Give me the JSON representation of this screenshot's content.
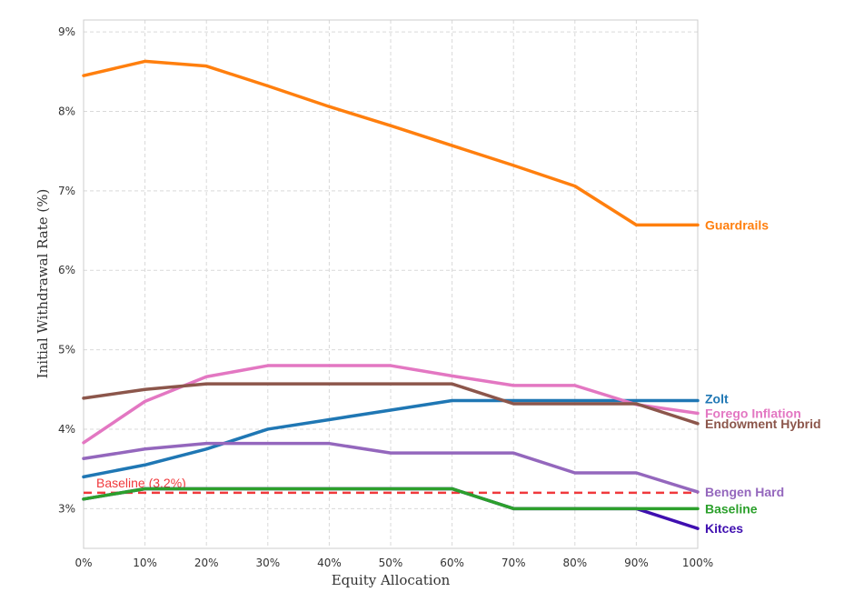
{
  "chart_data": {
    "type": "line",
    "title": "",
    "xlabel": "Equity Allocation",
    "ylabel": "Initial Withdrawal Rate (%)",
    "x": [
      0,
      10,
      20,
      30,
      40,
      50,
      60,
      70,
      80,
      90,
      100
    ],
    "x_tick_labels": [
      "0%",
      "10%",
      "20%",
      "30%",
      "40%",
      "50%",
      "60%",
      "70%",
      "80%",
      "90%",
      "100%"
    ],
    "xlim": [
      0,
      100
    ],
    "ylim": [
      2.5,
      9.15
    ],
    "y_ticks": [
      3,
      4,
      5,
      6,
      7,
      8,
      9
    ],
    "y_tick_labels": [
      "3%",
      "4%",
      "5%",
      "6%",
      "7%",
      "8%",
      "9%"
    ],
    "grid": true,
    "series": [
      {
        "name": "Guardrails",
        "color": "#ff7f0e",
        "values": [
          8.45,
          8.63,
          8.57,
          8.32,
          8.06,
          7.82,
          7.57,
          7.32,
          7.06,
          6.57,
          6.57
        ]
      },
      {
        "name": "Zolt",
        "color": "#1f77b4",
        "values": [
          3.4,
          3.55,
          3.75,
          4.0,
          4.12,
          4.24,
          4.36,
          4.36,
          4.36,
          4.36,
          4.36
        ]
      },
      {
        "name": "Forego Inflation",
        "color": "#e377c2",
        "values": [
          3.83,
          4.35,
          4.66,
          4.8,
          4.8,
          4.8,
          4.67,
          4.55,
          4.55,
          4.31,
          4.2
        ]
      },
      {
        "name": "Endowment Hybrid",
        "color": "#8c564b",
        "values": [
          4.39,
          4.5,
          4.57,
          4.57,
          4.57,
          4.57,
          4.57,
          4.32,
          4.32,
          4.32,
          4.07
        ]
      },
      {
        "name": "Bengen Hard",
        "color": "#9467bd",
        "values": [
          3.63,
          3.75,
          3.82,
          3.82,
          3.82,
          3.7,
          3.7,
          3.7,
          3.45,
          3.45,
          3.21
        ]
      },
      {
        "name": "Kitces",
        "color": "#3f0fb0",
        "values": [
          3.12,
          3.25,
          3.25,
          3.25,
          3.25,
          3.25,
          3.25,
          3.0,
          3.0,
          3.0,
          2.75
        ]
      },
      {
        "name": "Baseline",
        "color": "#2ca02c",
        "values": [
          3.12,
          3.25,
          3.25,
          3.25,
          3.25,
          3.25,
          3.25,
          3.0,
          3.0,
          3.0,
          3.0
        ]
      }
    ],
    "reference_line": {
      "label": "Baseline (3.2%)",
      "value": 3.2,
      "color": "#f0393c",
      "style": "dashed"
    },
    "series_labels": [
      {
        "text": "Guardrails",
        "color": "#ff7f0e",
        "y": 6.57
      },
      {
        "text": "Zolt",
        "color": "#1f77b4",
        "y": 4.38
      },
      {
        "text": "Forego Inflation",
        "color": "#e377c2",
        "y": 4.2
      },
      {
        "text": "Endowment Hybrid",
        "color": "#8c564b",
        "y": 4.07
      },
      {
        "text": "Bengen Hard",
        "color": "#9467bd",
        "y": 3.21
      },
      {
        "text": "Baseline",
        "color": "#2ca02c",
        "y": 3.0
      },
      {
        "text": "Kitces",
        "color": "#3f0fb0",
        "y": 2.75
      }
    ]
  }
}
